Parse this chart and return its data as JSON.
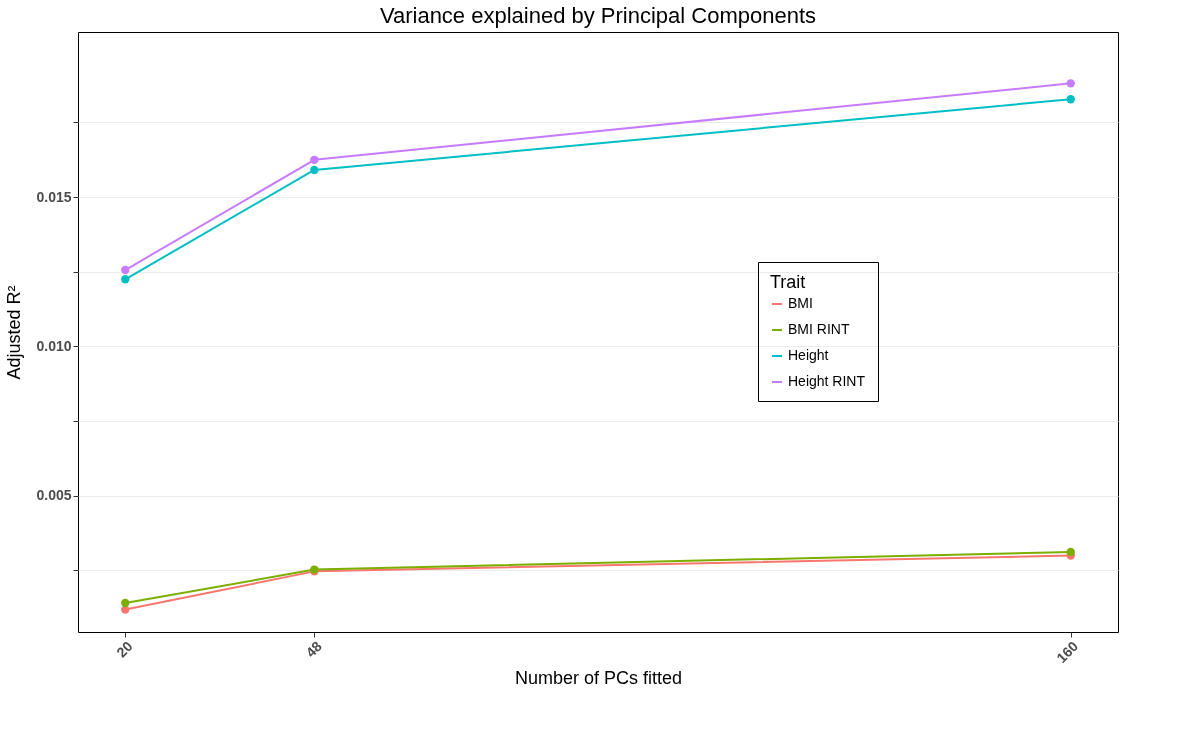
{
  "chart_data": {
    "type": "line",
    "title": "Variance explained by Principal Components",
    "xlabel": "Number of PCs fitted",
    "ylabel": "Adjusted R²",
    "legend_title": "Trait",
    "x": [
      20,
      48,
      160
    ],
    "series": [
      {
        "name": "BMI",
        "color": "#f8766d",
        "values": [
          0.00119,
          0.00247,
          0.003
        ]
      },
      {
        "name": "BMI RINT",
        "color": "#7cae00",
        "values": [
          0.00141,
          0.00253,
          0.00312
        ]
      },
      {
        "name": "Height",
        "color": "#00bfc4",
        "values": [
          0.01225,
          0.01591,
          0.01828
        ]
      },
      {
        "name": "Height RINT",
        "color": "#c77cff",
        "values": [
          0.01256,
          0.01625,
          0.01881
        ]
      }
    ],
    "xlim": [
      13,
      167
    ],
    "xticks": [
      20,
      48,
      160
    ],
    "ylim": [
      0.00044,
      0.02053
    ],
    "yticks": [
      {
        "value": 0.0025,
        "label": null
      },
      0.005,
      {
        "value": 0.0075,
        "label": null
      },
      {
        "value": 0.01,
        "label": "0.010"
      },
      {
        "value": 0.0125,
        "label": null
      },
      0.015,
      {
        "value": 0.0175,
        "label": null
      }
    ],
    "grid": "y",
    "legend": "right",
    "marker": "circle",
    "line_style": "solid"
  }
}
